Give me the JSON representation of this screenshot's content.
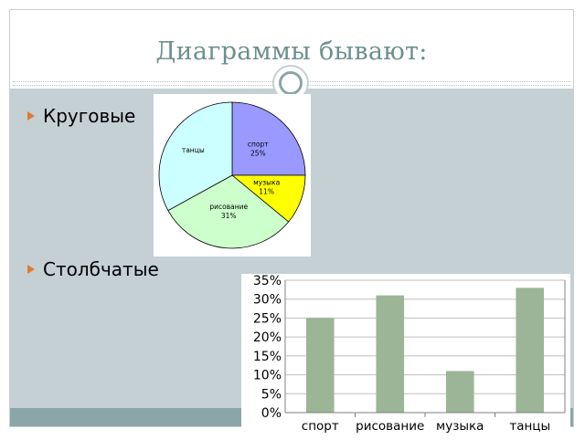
{
  "slide": {
    "title": "Диаграммы бывают:",
    "bullets": [
      "Круговые",
      "Столбчатые"
    ]
  },
  "colors": {
    "title": "#6d8f90",
    "content_bg": "#c5d0d5",
    "footer": "#8aa6a8",
    "bullet": "#e07b2c",
    "bar": "#9bb596"
  },
  "chart_data": [
    {
      "type": "pie",
      "slices": [
        {
          "label": "спорт",
          "value": 25,
          "display": "25%",
          "color": "#9999ff"
        },
        {
          "label": "музыка",
          "value": 11,
          "display": "11%",
          "color": "#ffff00"
        },
        {
          "label": "рисование",
          "value": 31,
          "display": "31%",
          "color": "#ccffcc"
        },
        {
          "label": "танцы",
          "value": 33,
          "display": "",
          "color": "#ccffff"
        }
      ]
    },
    {
      "type": "bar",
      "categories": [
        "спорт",
        "рисование",
        "музыка",
        "танцы"
      ],
      "values": [
        25,
        31,
        11,
        33
      ],
      "ylim": [
        0,
        35
      ],
      "yticks": [
        "0%",
        "5%",
        "10%",
        "15%",
        "20%",
        "25%",
        "30%",
        "35%"
      ],
      "grid": true
    }
  ]
}
